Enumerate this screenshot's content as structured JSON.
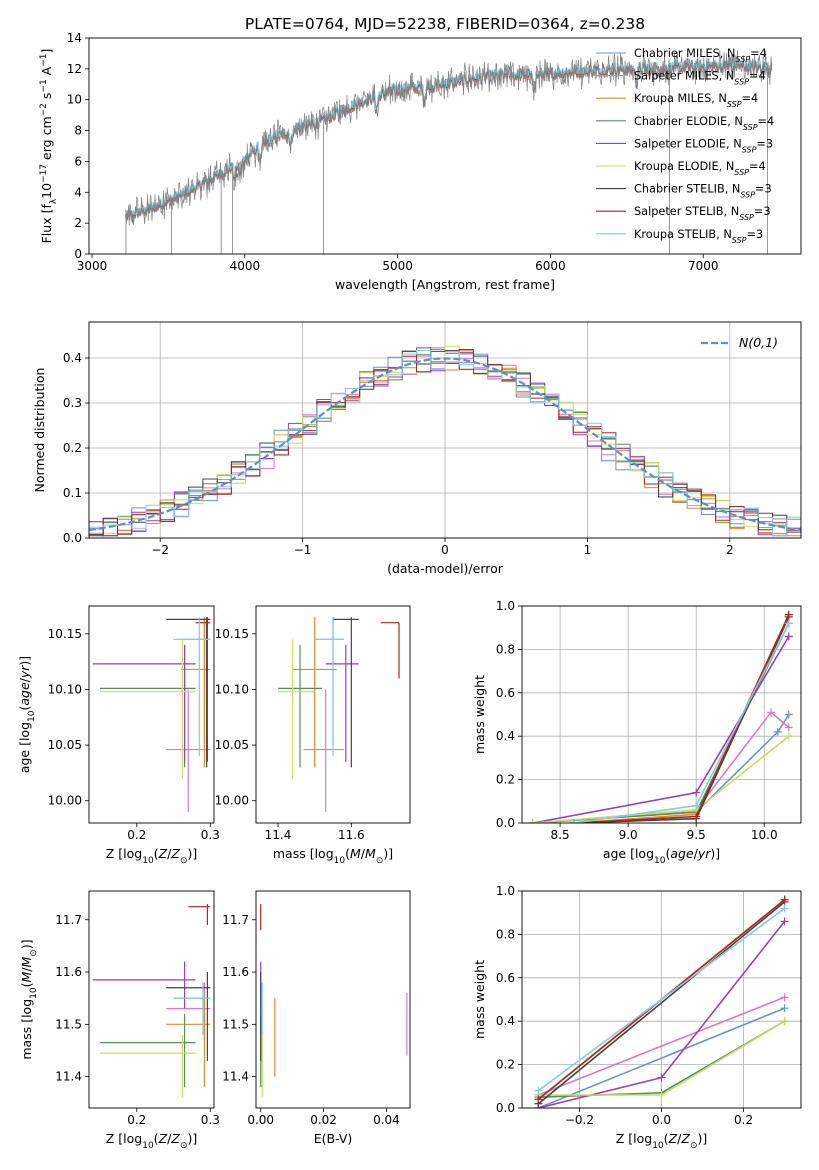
{
  "figure": {
    "title": "PLATE=0764, MJD=52238, FIBERID=0364, z=0.238"
  },
  "colors": {
    "chabrier_miles": "#6f8fd8",
    "salpeter_miles": "#e377c2",
    "kroupa_miles": "#e38a2e",
    "chabrier_elodie": "#5a8f5a",
    "salpeter_elodie": "#9b3fb8",
    "kroupa_elodie": "#c5e05a",
    "chabrier_stelib": "#444444",
    "salpeter_stelib": "#b22222",
    "kroupa_stelib": "#7fcfe0",
    "data_grey": "#808080",
    "normal_curve": "#5b8fd6"
  },
  "chart_data": [
    {
      "id": "spectrum",
      "type": "line",
      "title": "PLATE=0764, MJD=52238, FIBERID=0364, z=0.238",
      "xlabel": "wavelength [Angstrom, rest frame]",
      "ylabel": "Flux [f_λ10^-17 erg cm^-2 s^-1 A^-1]",
      "xlim": [
        2980,
        7640
      ],
      "ylim": [
        0,
        14
      ],
      "xticks": [
        3000,
        4000,
        5000,
        6000,
        7000
      ],
      "yticks": [
        0,
        2,
        4,
        6,
        8,
        10,
        12,
        14
      ],
      "grid": false,
      "legend": "top-right",
      "continuum": {
        "x": [
          3220,
          3400,
          3600,
          3800,
          3950,
          4100,
          4300,
          4500,
          4700,
          4900,
          5100,
          5300,
          5500,
          5700,
          5900,
          6100,
          6300,
          6500,
          6700,
          6900,
          7100,
          7300,
          7450
        ],
        "y": [
          2.4,
          3.0,
          3.9,
          5.0,
          5.8,
          7.0,
          8.0,
          8.6,
          9.6,
          10.4,
          10.8,
          11.0,
          11.4,
          11.6,
          11.6,
          11.8,
          11.9,
          12.0,
          12.0,
          12.1,
          12.2,
          12.2,
          12.0
        ]
      },
      "series": [
        {
          "name": "Chabrier MILES, N_SSP=4",
          "label_main": "Chabrier MILES, N",
          "label_sub": "SSP",
          "label_tail": "=4",
          "color": "#6f8fd8"
        },
        {
          "name": "Salpeter MILES, N_SSP=4",
          "label_main": "Salpeter MILES, N",
          "label_sub": "SSP",
          "label_tail": "=4",
          "color": "#e377c2"
        },
        {
          "name": "Kroupa MILES, N_SSP=4",
          "label_main": "Kroupa MILES, N",
          "label_sub": "SSP",
          "label_tail": "=4",
          "color": "#e38a2e"
        },
        {
          "name": "Chabrier ELODIE, N_SSP=4",
          "label_main": "Chabrier ELODIE, N",
          "label_sub": "SSP",
          "label_tail": "=4",
          "color": "#5a8f5a"
        },
        {
          "name": "Salpeter ELODIE, N_SSP=3",
          "label_main": "Salpeter ELODIE, N",
          "label_sub": "SSP",
          "label_tail": "=3",
          "color": "#9b3fb8"
        },
        {
          "name": "Kroupa ELODIE, N_SSP=4",
          "label_main": "Kroupa ELODIE, N",
          "label_sub": "SSP",
          "label_tail": "=4",
          "color": "#c5e05a"
        },
        {
          "name": "Chabrier STELIB, N_SSP=3",
          "label_main": "Chabrier STELIB, N",
          "label_sub": "SSP",
          "label_tail": "=3",
          "color": "#444444"
        },
        {
          "name": "Salpeter STELIB, N_SSP=3",
          "label_main": "Salpeter STELIB, N",
          "label_sub": "SSP",
          "label_tail": "=3",
          "color": "#b22222"
        },
        {
          "name": "Kroupa STELIB, N_SSP=3",
          "label_main": "Kroupa STELIB, N",
          "label_sub": "SSP",
          "label_tail": "=3",
          "color": "#7fcfe0"
        }
      ]
    },
    {
      "id": "residuals",
      "type": "line",
      "xlabel": "(data-model)/error",
      "ylabel": "Normed distribution",
      "xlim": [
        -2.5,
        2.5
      ],
      "ylim": [
        0,
        0.48
      ],
      "xticks": [
        -2,
        -1,
        0,
        1,
        2
      ],
      "yticks": [
        0.0,
        0.1,
        0.2,
        0.3,
        0.4
      ],
      "grid": true,
      "legend": "top-right",
      "normal_label": "N(0,1)",
      "bin_width": 0.1,
      "bin_start": -2.5,
      "series_offsets": [
        0.03,
        -0.02,
        0.01,
        0.0,
        0.02,
        -0.01,
        0.015,
        -0.015,
        0.005
      ]
    },
    {
      "id": "age_vs_Z",
      "type": "scatter",
      "xlabel": "Z [log10(Z/Z⊙)]",
      "ylabel": "age [log10(age/yr)]",
      "xlim": [
        0.135,
        0.305
      ],
      "ylim": [
        9.98,
        10.175
      ],
      "xticks": [
        0.2,
        0.3
      ],
      "yticks": [
        10.0,
        10.05,
        10.1,
        10.15
      ],
      "grid": false,
      "points": [
        {
          "x": 0.292,
          "y": 10.145,
          "xl": 0.26,
          "xh": 0.3,
          "yl": 10.05,
          "yh": 10.165,
          "color": "#6f8fd8"
        },
        {
          "x": 0.27,
          "y": 10.046,
          "xl": 0.24,
          "xh": 0.3,
          "yl": 9.99,
          "yh": 10.1,
          "color": "#e377c2"
        },
        {
          "x": 0.292,
          "y": 10.118,
          "xl": 0.26,
          "xh": 0.3,
          "yl": 10.03,
          "yh": 10.165,
          "color": "#e38a2e"
        },
        {
          "x": 0.265,
          "y": 10.101,
          "xl": 0.15,
          "xh": 0.28,
          "yl": 10.03,
          "yh": 10.14,
          "color": "#5a8f5a"
        },
        {
          "x": 0.265,
          "y": 10.123,
          "xl": 0.14,
          "xh": 0.28,
          "yl": 10.035,
          "yh": 10.14,
          "color": "#9b3fb8"
        },
        {
          "x": 0.262,
          "y": 10.098,
          "xl": 0.15,
          "xh": 0.28,
          "yl": 10.02,
          "yh": 10.145,
          "color": "#c5e05a"
        },
        {
          "x": 0.295,
          "y": 10.163,
          "xl": 0.24,
          "xh": 0.3,
          "yl": 10.03,
          "yh": 10.165,
          "color": "#444444"
        },
        {
          "x": 0.296,
          "y": 10.16,
          "xl": 0.28,
          "xh": 0.3,
          "yl": 10.035,
          "yh": 10.165,
          "color": "#b22222"
        },
        {
          "x": 0.285,
          "y": 10.145,
          "xl": 0.25,
          "xh": 0.3,
          "yl": 10.04,
          "yh": 10.165,
          "color": "#7fcfe0"
        }
      ]
    },
    {
      "id": "age_vs_mass",
      "type": "scatter",
      "xlabel": "mass [log10(M/M⊙)]",
      "ylabel": "",
      "xlim": [
        11.34,
        11.76
      ],
      "ylim": [
        9.98,
        10.175
      ],
      "xticks": [
        11.4,
        11.6
      ],
      "yticks": [
        10.0,
        10.05,
        10.1,
        10.15
      ],
      "grid": false,
      "points": [
        {
          "x": 11.55,
          "y": 10.145,
          "xl": 11.5,
          "xh": 11.58,
          "yl": 10.05,
          "yh": 10.165,
          "color": "#6f8fd8"
        },
        {
          "x": 11.53,
          "y": 10.046,
          "xl": 11.47,
          "xh": 11.58,
          "yl": 9.99,
          "yh": 10.1,
          "color": "#e377c2"
        },
        {
          "x": 11.5,
          "y": 10.118,
          "xl": 11.44,
          "xh": 11.56,
          "yl": 10.03,
          "yh": 10.165,
          "color": "#e38a2e"
        },
        {
          "x": 11.46,
          "y": 10.101,
          "xl": 11.4,
          "xh": 11.52,
          "yl": 10.03,
          "yh": 10.14,
          "color": "#5a8f5a"
        },
        {
          "x": 11.585,
          "y": 10.123,
          "xl": 11.53,
          "xh": 11.62,
          "yl": 10.035,
          "yh": 10.14,
          "color": "#9b3fb8"
        },
        {
          "x": 11.44,
          "y": 10.098,
          "xl": 11.4,
          "xh": 11.5,
          "yl": 10.02,
          "yh": 10.145,
          "color": "#c5e05a"
        },
        {
          "x": 11.6,
          "y": 10.163,
          "xl": 11.55,
          "xh": 11.62,
          "yl": 10.03,
          "yh": 10.165,
          "color": "#444444"
        },
        {
          "x": 11.73,
          "y": 10.16,
          "xl": 11.68,
          "xh": 11.73,
          "yl": 10.11,
          "yh": 10.16,
          "color": "#b22222"
        },
        {
          "x": 11.55,
          "y": 10.145,
          "xl": 11.5,
          "xh": 11.58,
          "yl": 10.04,
          "yh": 10.165,
          "color": "#7fcfe0"
        }
      ]
    },
    {
      "id": "weight_vs_age",
      "type": "line",
      "xlabel": "age [log10(age/yr)]",
      "ylabel": "mass weight",
      "xlim": [
        8.22,
        10.27
      ],
      "ylim": [
        0,
        1.0
      ],
      "xticks": [
        8.5,
        9.0,
        9.5,
        10.0
      ],
      "yticks": [
        0.0,
        0.2,
        0.4,
        0.6,
        0.8,
        1.0
      ],
      "grid": true,
      "series": [
        {
          "color": "#6f8fd8",
          "x": [
            8.3,
            9.5,
            10.1,
            10.18
          ],
          "y": [
            0.0,
            0.05,
            0.42,
            0.5
          ]
        },
        {
          "color": "#e377c2",
          "x": [
            8.3,
            9.5,
            10.05,
            10.18
          ],
          "y": [
            0.0,
            0.06,
            0.51,
            0.44
          ]
        },
        {
          "color": "#e38a2e",
          "x": [
            8.6,
            9.5,
            10.18
          ],
          "y": [
            0.0,
            0.04,
            0.96
          ]
        },
        {
          "color": "#5a8f5a",
          "x": [
            8.3,
            9.5,
            10.18
          ],
          "y": [
            0.0,
            0.05,
            0.92
          ]
        },
        {
          "color": "#9b3fb8",
          "x": [
            8.3,
            9.5,
            10.18
          ],
          "y": [
            0.0,
            0.14,
            0.86
          ]
        },
        {
          "color": "#c5e05a",
          "x": [
            8.3,
            9.5,
            10.18
          ],
          "y": [
            0.0,
            0.06,
            0.4
          ]
        },
        {
          "color": "#444444",
          "x": [
            8.6,
            9.5,
            10.18
          ],
          "y": [
            0.0,
            0.02,
            0.95
          ]
        },
        {
          "color": "#b22222",
          "x": [
            8.6,
            9.5,
            10.18
          ],
          "y": [
            0.0,
            0.03,
            0.96
          ]
        },
        {
          "color": "#7fcfe0",
          "x": [
            8.6,
            9.5,
            10.18
          ],
          "y": [
            0.0,
            0.08,
            0.92
          ]
        }
      ]
    },
    {
      "id": "mass_vs_Z",
      "type": "scatter",
      "xlabel": "Z [log10(Z/Z⊙)]",
      "ylabel": "mass [log10(M/M⊙)]",
      "xlim": [
        0.135,
        0.305
      ],
      "ylim": [
        11.34,
        11.755
      ],
      "xticks": [
        0.2,
        0.3
      ],
      "yticks": [
        11.4,
        11.5,
        11.6,
        11.7
      ],
      "grid": false,
      "points": [
        {
          "x": 0.292,
          "y": 11.55,
          "xl": 0.25,
          "xh": 0.3,
          "yl": 11.47,
          "yh": 11.58,
          "color": "#6f8fd8"
        },
        {
          "x": 0.292,
          "y": 11.53,
          "xl": 0.24,
          "xh": 0.3,
          "yl": 11.47,
          "yh": 11.58,
          "color": "#e377c2"
        },
        {
          "x": 0.292,
          "y": 11.5,
          "xl": 0.24,
          "xh": 0.3,
          "yl": 11.38,
          "yh": 11.55,
          "color": "#e38a2e"
        },
        {
          "x": 0.265,
          "y": 11.465,
          "xl": 0.15,
          "xh": 0.28,
          "yl": 11.38,
          "yh": 11.52,
          "color": "#5a8f5a"
        },
        {
          "x": 0.265,
          "y": 11.585,
          "xl": 0.14,
          "xh": 0.28,
          "yl": 11.53,
          "yh": 11.62,
          "color": "#9b3fb8"
        },
        {
          "x": 0.262,
          "y": 11.445,
          "xl": 0.15,
          "xh": 0.28,
          "yl": 11.36,
          "yh": 11.48,
          "color": "#c5e05a"
        },
        {
          "x": 0.296,
          "y": 11.57,
          "xl": 0.24,
          "xh": 0.3,
          "yl": 11.43,
          "yh": 11.6,
          "color": "#444444"
        },
        {
          "x": 0.296,
          "y": 11.725,
          "xl": 0.27,
          "xh": 0.3,
          "yl": 11.69,
          "yh": 11.73,
          "color": "#b22222"
        },
        {
          "x": 0.29,
          "y": 11.55,
          "xl": 0.25,
          "xh": 0.3,
          "yl": 11.48,
          "yh": 11.58,
          "color": "#7fcfe0"
        }
      ]
    },
    {
      "id": "mass_vs_EBV",
      "type": "scatter",
      "xlabel": "E(B-V)",
      "ylabel": "",
      "xlim": [
        -0.0015,
        0.0475
      ],
      "ylim": [
        11.34,
        11.755
      ],
      "xticks": [
        0.0,
        0.02,
        0.04
      ],
      "yticks": [
        11.4,
        11.5,
        11.6,
        11.7
      ],
      "grid": false,
      "points": [
        {
          "x": 0.0,
          "y": 11.55,
          "xl": 0.0,
          "xh": 0.0,
          "yl": 11.47,
          "yh": 11.58,
          "color": "#6f8fd8"
        },
        {
          "x": 0.0465,
          "y": 11.5,
          "xl": 0.0465,
          "xh": 0.0465,
          "yl": 11.44,
          "yh": 11.56,
          "color": "#e377c2"
        },
        {
          "x": 0.0045,
          "y": 11.49,
          "xl": 0.0045,
          "xh": 0.0045,
          "yl": 11.4,
          "yh": 11.55,
          "color": "#e38a2e"
        },
        {
          "x": 0.0,
          "y": 11.465,
          "xl": 0.0,
          "xh": 0.0,
          "yl": 11.38,
          "yh": 11.52,
          "color": "#5a8f5a"
        },
        {
          "x": 0.0,
          "y": 11.585,
          "xl": 0.0,
          "xh": 0.0,
          "yl": 11.53,
          "yh": 11.62,
          "color": "#9b3fb8"
        },
        {
          "x": 0.0005,
          "y": 11.42,
          "xl": 0.0005,
          "xh": 0.0005,
          "yl": 11.36,
          "yh": 11.48,
          "color": "#c5e05a"
        },
        {
          "x": 0.0,
          "y": 11.57,
          "xl": 0.0,
          "xh": 0.0,
          "yl": 11.43,
          "yh": 11.6,
          "color": "#444444"
        },
        {
          "x": 0.0,
          "y": 11.7,
          "xl": 0.0,
          "xh": 0.0,
          "yl": 11.68,
          "yh": 11.73,
          "color": "#b22222"
        },
        {
          "x": 0.0005,
          "y": 11.55,
          "xl": 0.0005,
          "xh": 0.0005,
          "yl": 11.48,
          "yh": 11.58,
          "color": "#7fcfe0"
        }
      ]
    },
    {
      "id": "weight_vs_Z",
      "type": "line",
      "xlabel": "Z [log10(Z/Z⊙)]",
      "ylabel": "mass weight",
      "xlim": [
        -0.34,
        0.34
      ],
      "ylim": [
        0,
        1.0
      ],
      "xticks": [
        -0.2,
        0.0,
        0.2
      ],
      "yticks": [
        0.0,
        0.2,
        0.4,
        0.6,
        0.8,
        1.0
      ],
      "grid": true,
      "series": [
        {
          "color": "#6f8fd8",
          "x": [
            -0.3,
            0.3
          ],
          "y": [
            0.0,
            0.46
          ]
        },
        {
          "color": "#e377c2",
          "x": [
            -0.3,
            0.3
          ],
          "y": [
            0.06,
            0.51
          ]
        },
        {
          "color": "#e38a2e",
          "x": [
            -0.3,
            0.3
          ],
          "y": [
            0.04,
            0.96
          ]
        },
        {
          "color": "#5a8f5a",
          "x": [
            -0.3,
            0.0,
            0.3
          ],
          "y": [
            0.05,
            0.07,
            0.4
          ]
        },
        {
          "color": "#9b3fb8",
          "x": [
            -0.3,
            0.0,
            0.3
          ],
          "y": [
            0.0,
            0.14,
            0.86
          ]
        },
        {
          "color": "#c5e05a",
          "x": [
            -0.3,
            0.0,
            0.3
          ],
          "y": [
            0.06,
            0.06,
            0.4
          ]
        },
        {
          "color": "#444444",
          "x": [
            -0.3,
            0.3
          ],
          "y": [
            0.02,
            0.95
          ]
        },
        {
          "color": "#b22222",
          "x": [
            -0.3,
            0.3
          ],
          "y": [
            0.04,
            0.96
          ]
        },
        {
          "color": "#7fcfe0",
          "x": [
            -0.3,
            0.3
          ],
          "y": [
            0.08,
            0.92
          ]
        }
      ]
    }
  ]
}
